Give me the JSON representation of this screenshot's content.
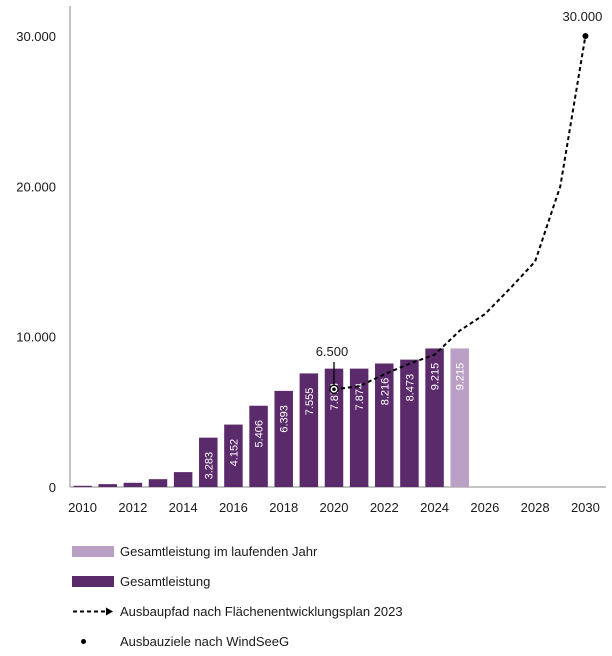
{
  "colors": {
    "installed": "#5b2a6b",
    "current_year": "#b9a0c4",
    "path": "#000000",
    "axis": "#8a8a8a"
  },
  "chart_data": {
    "type": "bar",
    "x_ticks": [
      "2010",
      "2012",
      "2014",
      "2016",
      "2018",
      "2020",
      "2022",
      "2024",
      "2026",
      "2028",
      "2030"
    ],
    "y_ticks": [
      "0",
      "10.000",
      "20.000",
      "30.000"
    ],
    "ylim": [
      0,
      32000
    ],
    "xlim": [
      2009.5,
      2030.5
    ],
    "series": [
      {
        "name": "Gesamtleistung",
        "x": [
          2010,
          2011,
          2012,
          2013,
          2014,
          2015,
          2016,
          2017,
          2018,
          2019,
          2020,
          2021,
          2022,
          2023,
          2024
        ],
        "values": [
          80,
          190,
          280,
          520,
          990,
          3283,
          4152,
          5406,
          6393,
          7555,
          7874,
          7874,
          8216,
          8473,
          9215
        ],
        "labels": [
          "",
          "",
          "",
          "",
          "",
          "3.283",
          "4.152",
          "5.406",
          "6.393",
          "7.555",
          "7.874",
          "7.874",
          "8.216",
          "8.473",
          "9.215"
        ]
      },
      {
        "name": "Gesamtleistung im laufenden Jahr",
        "x": [
          2025
        ],
        "values": [
          9215
        ],
        "labels": [
          "9.215"
        ]
      }
    ],
    "path": {
      "name": "Ausbaupfad nach Flächenentwicklungsplan 2023",
      "x": [
        2020,
        2021,
        2022,
        2023,
        2024,
        2025,
        2026,
        2027,
        2028,
        2029,
        2030
      ],
      "y": [
        6500,
        6700,
        7500,
        8200,
        8800,
        10400,
        11500,
        13200,
        15000,
        20000,
        30000
      ]
    },
    "targets": {
      "name": "Ausbauziele nach WindSeeG",
      "points": [
        {
          "x": 2020,
          "y": 6500,
          "label": "6.500"
        },
        {
          "x": 2030,
          "y": 30000,
          "label": "30.000"
        }
      ]
    }
  },
  "legend": [
    {
      "label": "Gesamtleistung im laufenden Jahr"
    },
    {
      "label": "Gesamtleistung"
    },
    {
      "label": "Ausbaupfad nach Flächenentwicklungsplan 2023"
    },
    {
      "label": "Ausbauziele nach WindSeeG"
    }
  ]
}
